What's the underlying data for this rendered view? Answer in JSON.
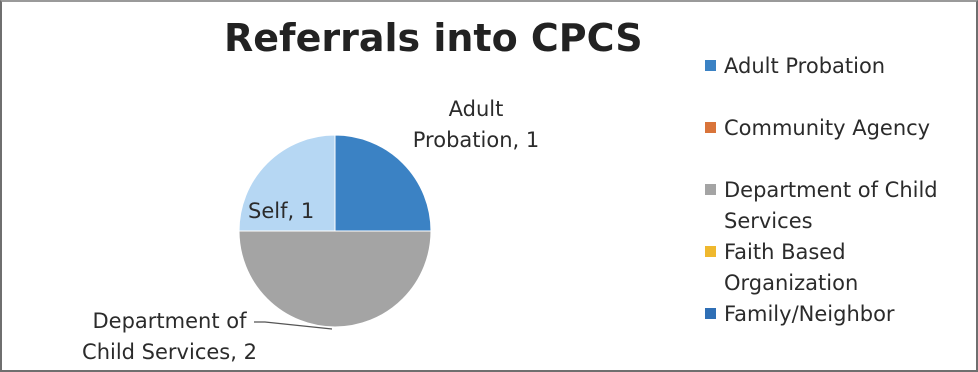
{
  "chart_data": {
    "type": "pie",
    "title": "Referrals into CPCS",
    "categories": [
      "Adult Probation",
      "Community Agency",
      "Department of Child Services",
      "Faith Based Organization",
      "Family/Neighbor",
      "Self"
    ],
    "values": [
      1,
      0,
      2,
      0,
      0,
      1
    ],
    "data_labels": {
      "adult_probation": "Adult Probation, 1",
      "department_of_child_services": "Department of Child Services, 2",
      "self": "Self, 1"
    },
    "legend": {
      "placement": "right",
      "entries": [
        "Adult Probation",
        "Community Agency",
        "Department of Child Services",
        "Faith Based Organization",
        "Family/Neighbor"
      ]
    },
    "colors": {
      "adult_probation": "#3b82c4",
      "community_agency": "#d9743a",
      "department_of_child_services": "#a4a4a4",
      "faith_based_organization": "#efb82e",
      "family_neighbor": "#2f6fb5",
      "self": "#b6d7f3"
    }
  }
}
